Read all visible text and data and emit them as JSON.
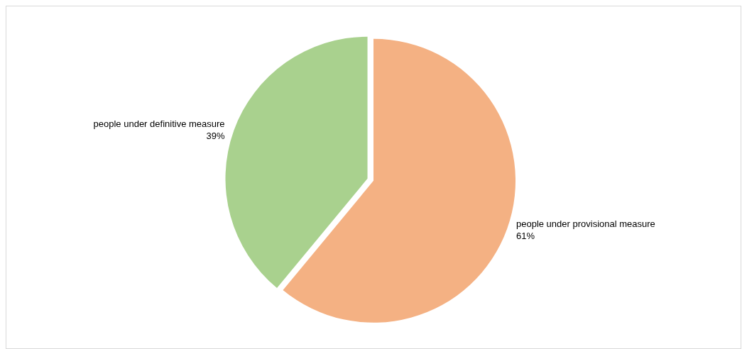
{
  "chart_data": {
    "type": "pie",
    "categories": [
      "people under provisional measure",
      "people under definitive measure"
    ],
    "values": [
      61,
      39
    ],
    "value_labels": [
      "61%",
      "39%"
    ],
    "colors": [
      "#f4b183",
      "#a9d18e"
    ],
    "legend": false
  }
}
